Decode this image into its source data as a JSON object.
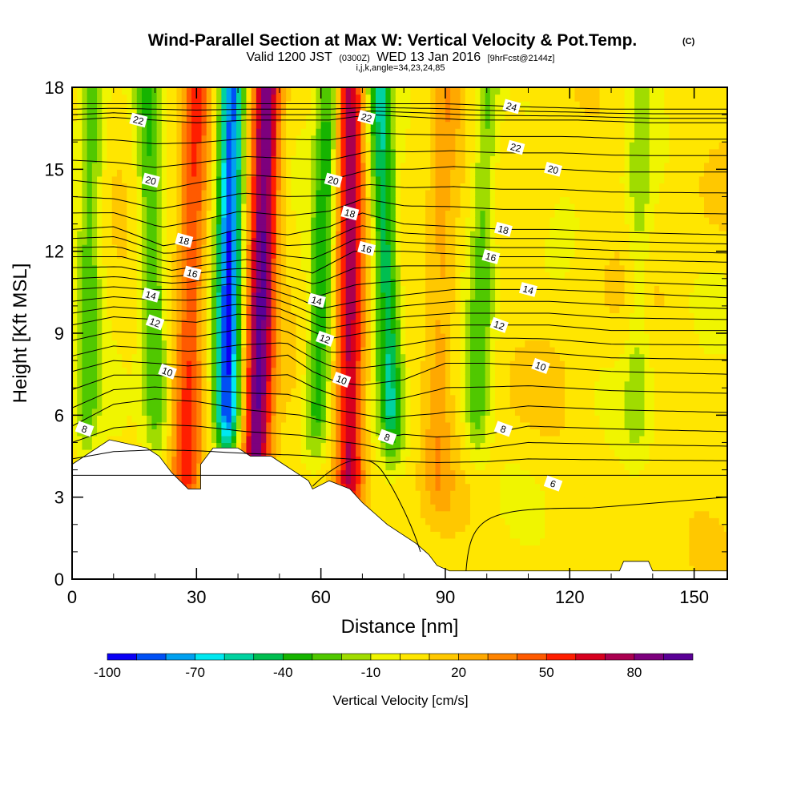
{
  "chart_data": {
    "type": "heatmap",
    "title": "Wind-Parallel Section at Max W: Vertical Velocity & Pot.Temp.",
    "title_mark": "(C)",
    "subtitle": {
      "valid": "Valid 1200 JST",
      "utc": "(0300Z)",
      "date": "WED 13 Jan 2016",
      "forecast": "[9hrFcst@2144z]"
    },
    "info": "i,j,k,angle=34,23,24,85",
    "xlabel": "Distance [nm]",
    "ylabel": "Height [Kft MSL]",
    "xlim": [
      0,
      158
    ],
    "ylim": [
      0,
      18
    ],
    "x_ticks": [
      "0",
      "30",
      "60",
      "90",
      "120",
      "150"
    ],
    "y_ticks": [
      "0",
      "3",
      "6",
      "9",
      "12",
      "15",
      "18"
    ],
    "colorbar": {
      "label": "Vertical Velocity [cm/s]",
      "tick_labels": [
        "-100",
        "-70",
        "-40",
        "-10",
        "20",
        "50",
        "80"
      ],
      "levels": [
        -100,
        -90,
        -80,
        -70,
        -60,
        -50,
        -40,
        -30,
        -20,
        -10,
        0,
        10,
        20,
        30,
        40,
        50,
        60,
        70,
        80,
        90
      ],
      "colors": [
        "#0a00f5",
        "#0050f5",
        "#00a0f0",
        "#00e8f0",
        "#00d2a0",
        "#00be50",
        "#16b400",
        "#50c800",
        "#a0dc00",
        "#f0f500",
        "#ffe600",
        "#ffc800",
        "#ffa800",
        "#ff8400",
        "#ff5a00",
        "#ff1e00",
        "#d7001e",
        "#aa0050",
        "#7d007d",
        "#5a0096"
      ]
    },
    "updrafts": [
      {
        "x_low": 44,
        "x_high": 47,
        "amp": 85
      },
      {
        "x_low": 67,
        "x_high": 67,
        "amp": 70
      },
      {
        "x_low": 27,
        "x_high": 30,
        "amp": 45
      },
      {
        "x_low": 88,
        "x_high": 90,
        "amp": 20
      }
    ],
    "downdrafts": [
      {
        "x_low": 37,
        "x_high": 38.5,
        "amp": -95
      },
      {
        "x_low": 58,
        "x_high": 62,
        "amp": -42
      },
      {
        "x_low": 78,
        "x_high": 74,
        "amp": -55
      },
      {
        "x_low": 21,
        "x_high": 18,
        "amp": -35
      },
      {
        "x_low": 3,
        "x_high": 5,
        "amp": -30
      },
      {
        "x_low": 97,
        "x_high": 100,
        "amp": -30
      },
      {
        "x_low": 136,
        "x_high": 137,
        "amp": -18
      }
    ],
    "terrain": [
      [
        0,
        4.2
      ],
      [
        3,
        4.5
      ],
      [
        6,
        4.8
      ],
      [
        9,
        5.1
      ],
      [
        18,
        4.8
      ],
      [
        21,
        4.5
      ],
      [
        24,
        3.9
      ],
      [
        26,
        3.6
      ],
      [
        28,
        3.3
      ],
      [
        31,
        3.3
      ],
      [
        31,
        4.2
      ],
      [
        34,
        4.8
      ],
      [
        40,
        4.8
      ],
      [
        43,
        4.5
      ],
      [
        48,
        4.5
      ],
      [
        51,
        4.2
      ],
      [
        54,
        3.9
      ],
      [
        57,
        3.6
      ],
      [
        58,
        3.3
      ],
      [
        62,
        3.6
      ],
      [
        67,
        3.3
      ],
      [
        70,
        2.8
      ],
      [
        73,
        2.4
      ],
      [
        76,
        2.0
      ],
      [
        80,
        1.6
      ],
      [
        83,
        1.3
      ],
      [
        86,
        0.9
      ],
      [
        88,
        0.5
      ],
      [
        91,
        0.3
      ],
      [
        132,
        0.3
      ],
      [
        133,
        0.65
      ],
      [
        139,
        0.65
      ],
      [
        140,
        0.3
      ],
      [
        158,
        0.3
      ]
    ],
    "isentropes": [
      {
        "value": 6,
        "base": 3.8,
        "pts": [
          [
            0,
            3.8
          ],
          [
            91,
            3.8
          ],
          [
            158,
            3.8
          ]
        ],
        "labels": [
          [
            116,
            3.5
          ]
        ]
      },
      {
        "value": 8,
        "base": 5.6,
        "pts": [
          [
            0,
            5.6
          ],
          [
            10,
            6.4
          ],
          [
            20,
            6.6
          ],
          [
            30,
            6.5
          ],
          [
            42,
            6.2
          ],
          [
            55,
            6.0
          ],
          [
            63,
            5.7
          ],
          [
            70,
            5.5
          ],
          [
            76,
            5.2
          ],
          [
            80,
            5.3
          ],
          [
            88,
            5.2
          ],
          [
            100,
            5.3
          ],
          [
            110,
            5.6
          ],
          [
            130,
            5.5
          ],
          [
            158,
            5.4
          ]
        ],
        "labels": [
          [
            3,
            5.5
          ],
          [
            76,
            5.2
          ],
          [
            104,
            5.5
          ]
        ]
      },
      {
        "value": 10,
        "base": 7.6,
        "pts": [
          [
            0,
            7.6
          ],
          [
            10,
            8.0
          ],
          [
            20,
            7.9
          ],
          [
            28,
            7.8
          ],
          [
            40,
            8.0
          ],
          [
            52,
            8.2
          ],
          [
            58,
            7.6
          ],
          [
            64,
            7.2
          ],
          [
            70,
            7.1
          ],
          [
            80,
            7.3
          ],
          [
            90,
            7.9
          ],
          [
            100,
            7.9
          ],
          [
            112,
            7.8
          ],
          [
            130,
            7.6
          ],
          [
            158,
            7.5
          ]
        ],
        "labels": [
          [
            23,
            7.6
          ],
          [
            65,
            7.3
          ],
          [
            113,
            7.8
          ]
        ]
      },
      {
        "value": 12,
        "base": 9.3,
        "pts": [
          [
            0,
            9.3
          ],
          [
            10,
            9.6
          ],
          [
            20,
            9.5
          ],
          [
            30,
            9.4
          ],
          [
            40,
            9.7
          ],
          [
            50,
            9.6
          ],
          [
            56,
            9.2
          ],
          [
            62,
            8.8
          ],
          [
            70,
            9.0
          ],
          [
            80,
            9.2
          ],
          [
            92,
            9.3
          ],
          [
            103,
            9.3
          ],
          [
            115,
            9.3
          ],
          [
            130,
            9.1
          ],
          [
            158,
            9.1
          ]
        ],
        "labels": [
          [
            20,
            9.4
          ],
          [
            61,
            8.8
          ],
          [
            103,
            9.3
          ]
        ]
      },
      {
        "value": 14,
        "base": 10.6,
        "pts": [
          [
            0,
            10.6
          ],
          [
            10,
            10.7
          ],
          [
            18,
            10.6
          ],
          [
            28,
            10.6
          ],
          [
            38,
            10.8
          ],
          [
            48,
            10.6
          ],
          [
            54,
            10.3
          ],
          [
            60,
            9.9
          ],
          [
            70,
            10.2
          ],
          [
            80,
            10.4
          ],
          [
            92,
            10.6
          ],
          [
            103,
            10.6
          ],
          [
            115,
            10.6
          ],
          [
            130,
            10.5
          ],
          [
            158,
            10.3
          ]
        ],
        "labels": [
          [
            19,
            10.4
          ],
          [
            59,
            10.2
          ],
          [
            110,
            10.6
          ]
        ]
      },
      {
        "value": 16,
        "base": 11.8,
        "pts": [
          [
            0,
            11.8
          ],
          [
            12,
            11.8
          ],
          [
            24,
            11.3
          ],
          [
            32,
            11.5
          ],
          [
            42,
            11.7
          ],
          [
            50,
            11.5
          ],
          [
            58,
            11.2
          ],
          [
            68,
            12.0
          ],
          [
            80,
            12.0
          ],
          [
            92,
            11.9
          ],
          [
            100,
            11.8
          ],
          [
            115,
            11.8
          ],
          [
            130,
            11.7
          ],
          [
            158,
            11.6
          ]
        ],
        "labels": [
          [
            29,
            11.2
          ],
          [
            71,
            12.1
          ],
          [
            101,
            11.8
          ]
        ]
      },
      {
        "value": 18,
        "base": 12.8,
        "pts": [
          [
            0,
            12.8
          ],
          [
            10,
            12.9
          ],
          [
            22,
            12.2
          ],
          [
            30,
            12.4
          ],
          [
            40,
            12.8
          ],
          [
            52,
            12.6
          ],
          [
            62,
            12.9
          ],
          [
            70,
            13.4
          ],
          [
            80,
            13.0
          ],
          [
            92,
            12.9
          ],
          [
            104,
            12.8
          ],
          [
            116,
            12.8
          ],
          [
            130,
            12.7
          ],
          [
            158,
            12.6
          ]
        ],
        "labels": [
          [
            27,
            12.4
          ],
          [
            67,
            13.4
          ],
          [
            104,
            12.8
          ]
        ]
      },
      {
        "value": 20,
        "base": 14.6,
        "pts": [
          [
            0,
            14.6
          ],
          [
            12,
            14.4
          ],
          [
            20,
            14.2
          ],
          [
            30,
            14.5
          ],
          [
            42,
            14.8
          ],
          [
            52,
            14.7
          ],
          [
            62,
            14.6
          ],
          [
            72,
            15.0
          ],
          [
            82,
            15.0
          ],
          [
            92,
            15.1
          ],
          [
            104,
            15.0
          ],
          [
            118,
            15.0
          ],
          [
            130,
            14.9
          ],
          [
            158,
            14.9
          ]
        ],
        "labels": [
          [
            19,
            14.6
          ],
          [
            63,
            14.6
          ],
          [
            116,
            15.0
          ]
        ]
      },
      {
        "value": 22,
        "base": 16.8,
        "pts": [
          [
            0,
            16.8
          ],
          [
            10,
            16.9
          ],
          [
            20,
            16.8
          ],
          [
            30,
            16.7
          ],
          [
            42,
            16.8
          ],
          [
            52,
            16.8
          ],
          [
            62,
            16.8
          ],
          [
            72,
            17.0
          ],
          [
            84,
            16.9
          ],
          [
            96,
            16.8
          ],
          [
            108,
            16.8
          ],
          [
            122,
            16.8
          ],
          [
            140,
            16.7
          ],
          [
            158,
            16.7
          ]
        ],
        "labels": [
          [
            16,
            16.8
          ],
          [
            71,
            16.9
          ],
          [
            107,
            15.8
          ]
        ]
      },
      {
        "value": 24,
        "base": 17.4,
        "pts": [
          [
            0,
            17.4
          ],
          [
            30,
            17.4
          ],
          [
            60,
            17.4
          ],
          [
            90,
            17.4
          ],
          [
            106,
            17.3
          ],
          [
            130,
            17.2
          ],
          [
            158,
            17.2
          ]
        ],
        "labels": [
          [
            106,
            17.3
          ]
        ]
      }
    ]
  }
}
